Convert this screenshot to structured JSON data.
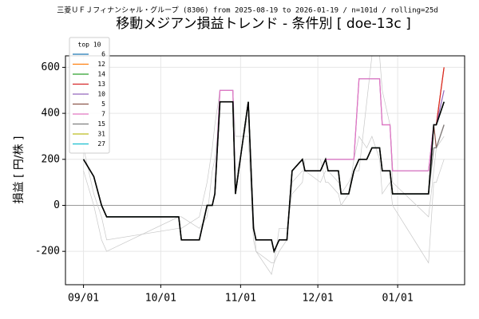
{
  "chart_data": {
    "type": "line",
    "title": "移動メジアン損益トレンド - 条件別 [ doe-13c ]",
    "subtitle": "三菱ＵＦＪフィナンシャル・グループ (8306) from 2025-08-19 to 2026-01-19 / n=101d / rolling=25d",
    "ylabel": "損益 [ 円/株 ]",
    "legend_title": "top 10",
    "legend": "upper left",
    "grid": true,
    "hline": 0,
    "x": [
      "09/01",
      "09/05",
      "09/08",
      "09/10",
      "10/08",
      "10/09",
      "10/16",
      "10/19",
      "10/21",
      "10/22",
      "10/24",
      "10/29",
      "10/30",
      "11/04",
      "11/06",
      "11/07",
      "11/13",
      "11/14",
      "11/16",
      "11/19",
      "11/21",
      "11/25",
      "11/26",
      "12/02",
      "12/04",
      "12/05",
      "12/09",
      "12/10",
      "12/13",
      "12/15",
      "12/17",
      "12/20",
      "12/22",
      "12/25",
      "12/26",
      "12/29",
      "12/30",
      "01/13",
      "01/15",
      "01/16",
      "01/19"
    ],
    "xlim": [
      "08/25",
      "01/27"
    ],
    "xticks": [
      "09/01",
      "10/01",
      "11/01",
      "12/01",
      "01/01"
    ],
    "ylim": [
      -345,
      650
    ],
    "yticks": [
      -200,
      0,
      200,
      400,
      600
    ],
    "series": [
      {
        "color": "#c8c8c8",
        "values": [
          250,
          50,
          -50,
          -150,
          -100,
          -100,
          -50,
          100,
          250,
          350,
          500,
          500,
          300,
          300,
          -150,
          -200,
          -250,
          -250,
          -200,
          -150,
          100,
          150,
          150,
          100,
          150,
          150,
          100,
          50,
          100,
          150,
          150,
          450,
          650,
          650,
          500,
          350,
          100,
          -50,
          150,
          250,
          300
        ]
      },
      {
        "color": "#c8c8c8",
        "values": [
          150,
          0,
          -150,
          -200,
          -50,
          -50,
          -100,
          -50,
          150,
          200,
          400,
          400,
          100,
          400,
          -50,
          -200,
          -300,
          -250,
          -100,
          -100,
          50,
          100,
          200,
          200,
          100,
          100,
          50,
          0,
          50,
          200,
          300,
          250,
          300,
          200,
          50,
          100,
          0,
          -250,
          100,
          100,
          200
        ]
      },
      {
        "name": "6",
        "color": "#1f77b4",
        "values": [
          200,
          125,
          0,
          -50,
          -50,
          -150,
          -150,
          0,
          0,
          50,
          450,
          450,
          50,
          450,
          -100,
          -150,
          -150,
          -200,
          -150,
          -150,
          150,
          200,
          150,
          150,
          200,
          150,
          150,
          50,
          50,
          150,
          200,
          200,
          250,
          250,
          150,
          150,
          50,
          50,
          350,
          350,
          450
        ]
      },
      {
        "name": "12",
        "color": "#ff7f0e",
        "values": [
          200,
          125,
          0,
          -50,
          -50,
          -150,
          -150,
          0,
          0,
          50,
          450,
          450,
          50,
          450,
          -100,
          -150,
          -150,
          -200,
          -150,
          -150,
          150,
          200,
          150,
          150,
          200,
          150,
          150,
          50,
          50,
          150,
          200,
          200,
          250,
          250,
          150,
          150,
          50,
          50,
          350,
          350,
          600
        ]
      },
      {
        "name": "14",
        "color": "#2ca02c",
        "values": [
          200,
          125,
          0,
          -50,
          -50,
          -150,
          -150,
          0,
          0,
          50,
          450,
          450,
          50,
          450,
          -100,
          -150,
          -150,
          -200,
          -150,
          -150,
          150,
          200,
          150,
          150,
          200,
          150,
          150,
          50,
          50,
          150,
          200,
          200,
          250,
          250,
          150,
          150,
          50,
          50,
          350,
          350,
          450
        ]
      },
      {
        "name": "13",
        "color": "#d62728",
        "values": [
          200,
          125,
          0,
          -50,
          -50,
          -150,
          -150,
          0,
          0,
          50,
          450,
          450,
          50,
          450,
          -100,
          -150,
          -150,
          -200,
          -150,
          -150,
          150,
          200,
          150,
          150,
          200,
          150,
          150,
          50,
          50,
          150,
          200,
          200,
          250,
          250,
          150,
          150,
          50,
          50,
          350,
          350,
          600
        ]
      },
      {
        "name": "10",
        "color": "#9467bd",
        "values": [
          200,
          125,
          0,
          -50,
          -50,
          -150,
          -150,
          0,
          0,
          50,
          500,
          500,
          50,
          450,
          -100,
          -150,
          -150,
          -200,
          -150,
          -150,
          150,
          200,
          150,
          150,
          200,
          200,
          200,
          200,
          200,
          200,
          550,
          550,
          550,
          550,
          350,
          350,
          150,
          150,
          350,
          350,
          500
        ]
      },
      {
        "name": "5",
        "color": "#8c564b",
        "values": [
          200,
          125,
          0,
          -50,
          -50,
          -150,
          -150,
          0,
          0,
          50,
          450,
          450,
          50,
          450,
          -100,
          -150,
          -150,
          -200,
          -150,
          -150,
          150,
          200,
          150,
          150,
          200,
          150,
          150,
          50,
          50,
          150,
          200,
          200,
          250,
          250,
          150,
          150,
          50,
          50,
          350,
          250,
          350
        ]
      },
      {
        "name": "7",
        "color": "#e377c2",
        "values": [
          200,
          125,
          0,
          -50,
          -50,
          -150,
          -150,
          0,
          0,
          50,
          500,
          500,
          50,
          450,
          -100,
          -150,
          -150,
          -200,
          -150,
          -150,
          150,
          200,
          150,
          150,
          200,
          200,
          200,
          200,
          200,
          200,
          550,
          550,
          550,
          550,
          350,
          350,
          150,
          150,
          350,
          350,
          450
        ]
      },
      {
        "name": "15",
        "color": "#7f7f7f",
        "values": [
          200,
          125,
          0,
          -50,
          -50,
          -150,
          -150,
          0,
          0,
          50,
          450,
          450,
          50,
          450,
          -100,
          -150,
          -150,
          -200,
          -150,
          -150,
          150,
          200,
          150,
          150,
          200,
          150,
          150,
          50,
          50,
          150,
          200,
          200,
          250,
          250,
          150,
          150,
          50,
          50,
          250,
          250,
          350
        ]
      },
      {
        "name": "31",
        "color": "#bcbd22",
        "values": [
          200,
          125,
          0,
          -50,
          -50,
          -150,
          -150,
          0,
          0,
          50,
          450,
          450,
          50,
          450,
          -100,
          -150,
          -150,
          -200,
          -150,
          -150,
          150,
          200,
          150,
          150,
          200,
          150,
          150,
          50,
          50,
          150,
          200,
          200,
          250,
          250,
          150,
          150,
          50,
          50,
          350,
          350,
          450
        ]
      },
      {
        "name": "27",
        "color": "#17becf",
        "values": [
          200,
          125,
          0,
          -50,
          -50,
          -150,
          -150,
          0,
          0,
          50,
          450,
          450,
          50,
          450,
          -100,
          -150,
          -150,
          -200,
          -150,
          -150,
          150,
          200,
          150,
          150,
          200,
          150,
          150,
          50,
          50,
          150,
          200,
          200,
          250,
          250,
          150,
          150,
          50,
          50,
          350,
          350,
          450
        ]
      },
      {
        "color": "#000000",
        "values": [
          200,
          125,
          0,
          -50,
          -50,
          -150,
          -150,
          0,
          0,
          50,
          450,
          450,
          50,
          450,
          -100,
          -150,
          -150,
          -200,
          -150,
          -150,
          150,
          200,
          150,
          150,
          200,
          150,
          150,
          50,
          50,
          150,
          200,
          200,
          250,
          250,
          150,
          150,
          50,
          50,
          350,
          350,
          450
        ]
      }
    ]
  }
}
